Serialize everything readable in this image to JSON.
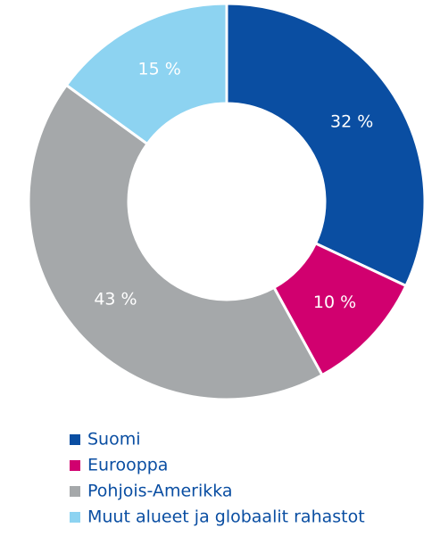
{
  "chart_data": {
    "type": "donut",
    "categories": [
      "Suomi",
      "Eurooppa",
      "Pohjois-Amerikka",
      "Muut alueet ja globaalit rahastot"
    ],
    "values": [
      32,
      10,
      43,
      15
    ],
    "value_labels": [
      "32 %",
      "10 %",
      "43 %",
      "15 %"
    ],
    "colors": [
      "#0a4ea2",
      "#d1006f",
      "#a5a8aa",
      "#8dd3f1"
    ],
    "legend": "bottom"
  }
}
